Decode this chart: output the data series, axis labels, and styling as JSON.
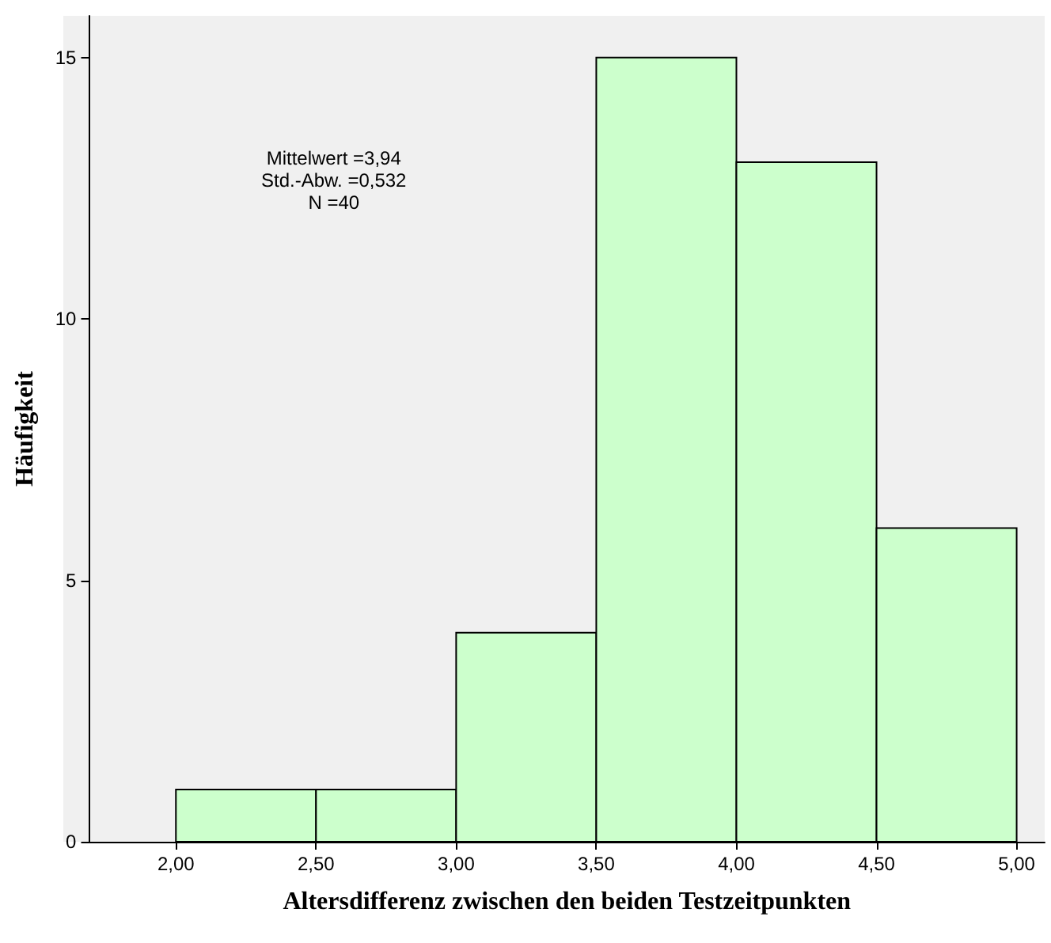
{
  "chart_data": {
    "type": "histogram",
    "bins": [
      2.0,
      2.5,
      3.0,
      3.5,
      4.0,
      4.5,
      5.0
    ],
    "values": [
      1,
      1,
      4,
      15,
      13,
      6
    ],
    "color": "#ccffcc",
    "xlabel": "Altersdifferenz zwischen den beiden Testzeitpunkten",
    "ylabel": "Häufigkeit",
    "xlim": [
      1.69,
      5.1
    ],
    "xticks": [
      {
        "value": 2.0,
        "label": "2,00"
      },
      {
        "value": 2.5,
        "label": "2,50"
      },
      {
        "value": 3.0,
        "label": "3,00"
      },
      {
        "value": 3.5,
        "label": "3,50"
      },
      {
        "value": 4.0,
        "label": "4,00"
      },
      {
        "value": 4.5,
        "label": "4,50"
      },
      {
        "value": 5.0,
        "label": "5,00"
      }
    ],
    "ylim": [
      0,
      15.8
    ],
    "yticks": [
      0,
      5,
      10,
      15
    ],
    "grid": false,
    "annotations": [
      "Mittelwert =3,94",
      "Std.-Abw. =0,532",
      "N =40"
    ]
  }
}
